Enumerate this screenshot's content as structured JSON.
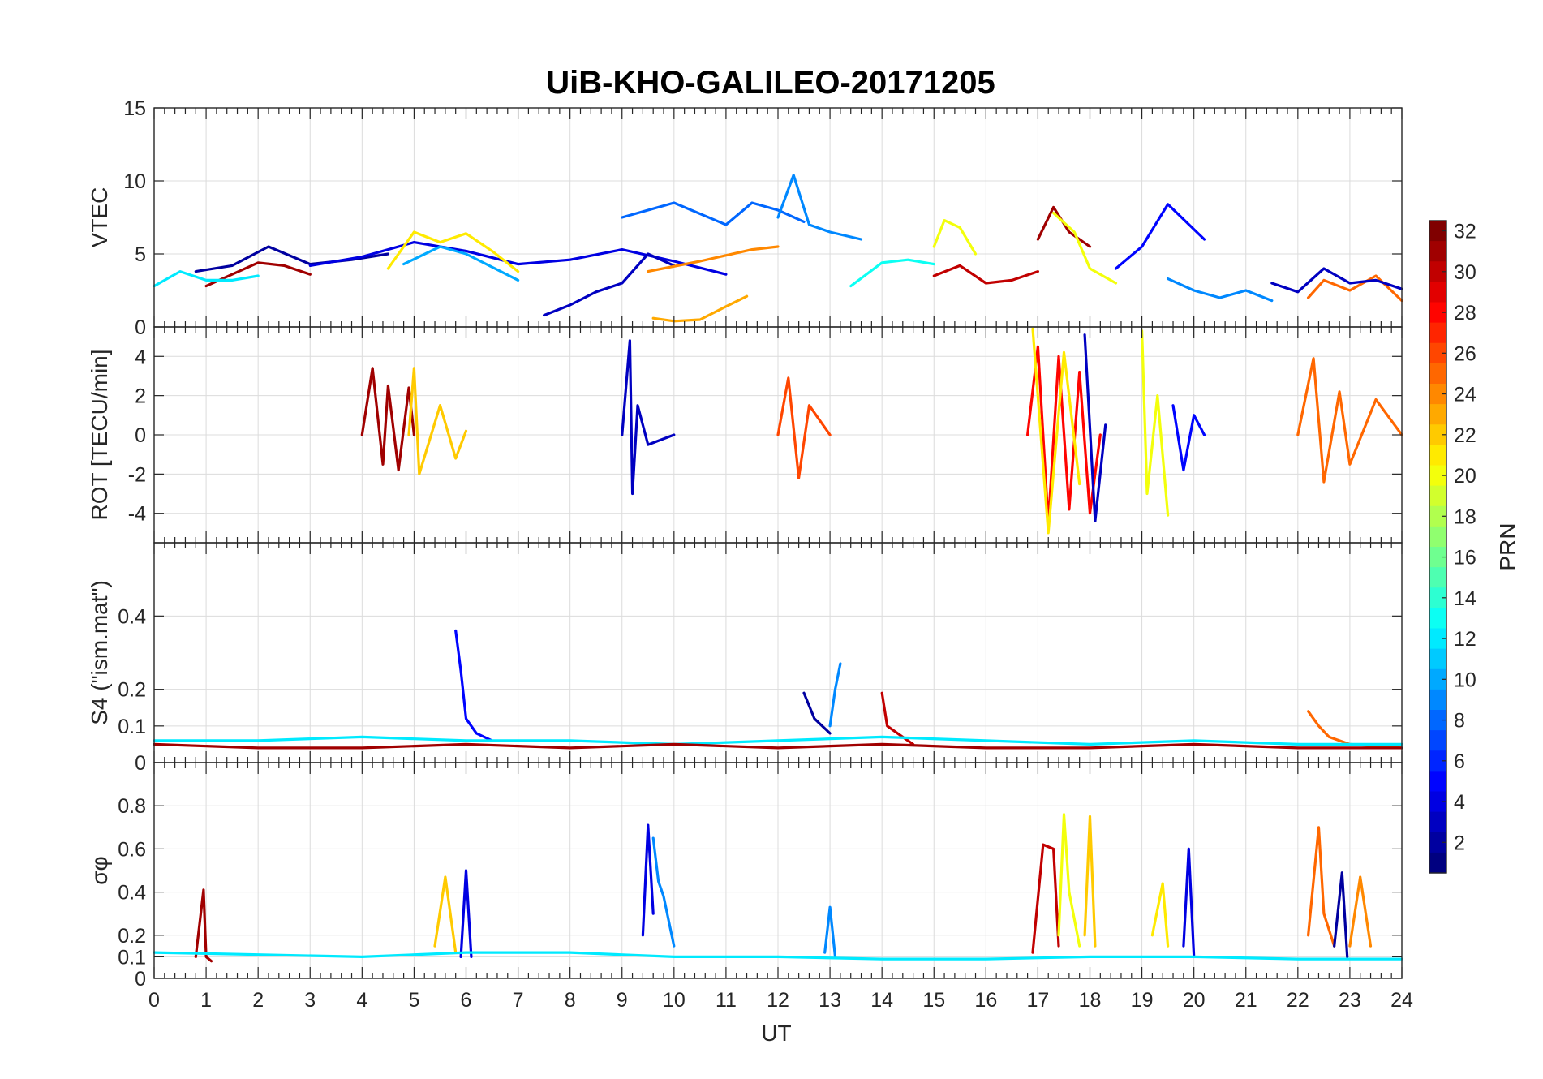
{
  "figure": {
    "title": "UiB-KHO-GALILEO-20171205",
    "xlabel": "UT"
  },
  "chart_data": [
    {
      "type": "line",
      "panel": "vtec",
      "ylabel": "VTEC",
      "xlim": [
        0,
        24
      ],
      "ylim": [
        0,
        15
      ],
      "yticks": [
        0,
        5,
        10,
        15
      ],
      "xticks": [
        0,
        1,
        2,
        3,
        4,
        5,
        6,
        7,
        8,
        9,
        10,
        11,
        12,
        13,
        14,
        15,
        16,
        17,
        18,
        19,
        20,
        21,
        22,
        23,
        24
      ],
      "grid": true,
      "series": [
        {
          "prn": 2,
          "x": [
            0.8,
            1.5,
            2.2,
            3.0,
            3.8,
            4.5
          ],
          "y": [
            3.8,
            4.2,
            5.5,
            4.3,
            4.6,
            5.0
          ]
        },
        {
          "prn": 4,
          "x": [
            3.0,
            4.0,
            5.0,
            6.0,
            7.0,
            8.0,
            9.0,
            10.0,
            11.0
          ],
          "y": [
            4.2,
            4.8,
            5.8,
            5.2,
            4.3,
            4.6,
            5.3,
            4.5,
            3.6
          ]
        },
        {
          "prn": 3,
          "x": [
            7.5,
            8.0,
            8.5,
            9.0,
            9.5,
            10.0
          ],
          "y": [
            0.8,
            1.5,
            2.4,
            3.0,
            5.0,
            4.2
          ]
        },
        {
          "prn": 8,
          "x": [
            9.0,
            10.0,
            11.0,
            11.5,
            12.0,
            12.5
          ],
          "y": [
            7.5,
            8.5,
            7.0,
            8.5,
            8.0,
            7.2
          ]
        },
        {
          "prn": 9,
          "x": [
            12.0,
            12.3,
            12.6,
            13.0,
            13.6
          ],
          "y": [
            7.5,
            10.4,
            7.0,
            6.5,
            6.0
          ]
        },
        {
          "prn": 24,
          "x": [
            9.5,
            10.5,
            11.5,
            12.0
          ],
          "y": [
            3.8,
            4.5,
            5.3,
            5.5
          ]
        },
        {
          "prn": 23,
          "x": [
            9.6,
            10.0,
            10.5,
            11.0,
            11.4
          ],
          "y": [
            0.6,
            0.4,
            0.5,
            1.4,
            2.1
          ]
        },
        {
          "prn": 21,
          "x": [
            4.5,
            5.0,
            5.5,
            6.0,
            6.5,
            7.0
          ],
          "y": [
            4.0,
            6.5,
            5.8,
            6.4,
            5.2,
            3.8
          ]
        },
        {
          "prn": 10,
          "x": [
            4.8,
            5.5,
            6.0,
            7.0
          ],
          "y": [
            4.3,
            5.5,
            5.0,
            3.2
          ]
        },
        {
          "prn": 31,
          "x": [
            1.0,
            1.5,
            2.0,
            2.5,
            3.0
          ],
          "y": [
            2.8,
            3.6,
            4.4,
            4.2,
            3.6
          ]
        },
        {
          "prn": 12,
          "x": [
            0.0,
            0.5,
            1.0,
            1.5,
            2.0
          ],
          "y": [
            2.8,
            3.8,
            3.2,
            3.2,
            3.5
          ]
        },
        {
          "prn": 20,
          "x": [
            15.0,
            15.2,
            15.5,
            15.8
          ],
          "y": [
            5.5,
            7.3,
            6.8,
            5.0
          ]
        },
        {
          "prn": 13,
          "x": [
            13.4,
            14.0,
            14.5,
            15.0
          ],
          "y": [
            2.8,
            4.4,
            4.6,
            4.3
          ]
        },
        {
          "prn": 30,
          "x": [
            15.0,
            15.5,
            16.0,
            16.5,
            17.0
          ],
          "y": [
            3.5,
            4.2,
            3.0,
            3.2,
            3.8
          ]
        },
        {
          "prn": 31,
          "x": [
            17.0,
            17.3,
            17.6,
            18.0
          ],
          "y": [
            6.0,
            8.2,
            6.5,
            5.5
          ]
        },
        {
          "prn": 20,
          "x": [
            17.3,
            17.7,
            18.0,
            18.5
          ],
          "y": [
            7.8,
            6.5,
            4.0,
            3.0
          ]
        },
        {
          "prn": 5,
          "x": [
            18.5,
            19.0,
            19.5,
            20.2
          ],
          "y": [
            4.0,
            5.5,
            8.4,
            6.0
          ]
        },
        {
          "prn": 9,
          "x": [
            19.5,
            20.0,
            20.5,
            21.0,
            21.5
          ],
          "y": [
            3.3,
            2.5,
            2.0,
            2.5,
            1.8
          ]
        },
        {
          "prn": 25,
          "x": [
            22.2,
            22.5,
            23.0,
            23.5,
            24.0
          ],
          "y": [
            2.0,
            3.2,
            2.5,
            3.5,
            1.8
          ]
        },
        {
          "prn": 3,
          "x": [
            21.5,
            22.0,
            22.5,
            23.0,
            23.5,
            24.0
          ],
          "y": [
            3.0,
            2.4,
            4.0,
            3.0,
            3.2,
            2.6
          ]
        }
      ]
    },
    {
      "type": "line",
      "panel": "rot",
      "ylabel": "ROT [TECU/min]",
      "xlim": [
        0,
        24
      ],
      "ylim": [
        -5.5,
        5.5
      ],
      "yticks": [
        -4,
        -2,
        0,
        2,
        4
      ],
      "grid": true,
      "series": [
        {
          "prn": 31,
          "x": [
            4.0,
            4.2,
            4.4,
            4.5,
            4.7,
            4.9,
            5.0
          ],
          "y": [
            0,
            3.4,
            -1.5,
            2.5,
            -1.8,
            2.4,
            0
          ]
        },
        {
          "prn": 22,
          "x": [
            4.9,
            5.0,
            5.1,
            5.5,
            5.8,
            6.0
          ],
          "y": [
            0,
            3.4,
            -2.0,
            1.5,
            -1.2,
            0.2
          ]
        },
        {
          "prn": 3,
          "x": [
            9.0,
            9.15,
            9.2,
            9.3,
            9.5,
            10.0
          ],
          "y": [
            0,
            4.8,
            -3.0,
            1.5,
            -0.5,
            0
          ]
        },
        {
          "prn": 26,
          "x": [
            12.0,
            12.2,
            12.4,
            12.6,
            13.0
          ],
          "y": [
            0,
            2.9,
            -2.2,
            1.5,
            0
          ]
        },
        {
          "prn": 28,
          "x": [
            16.8,
            17.0,
            17.2,
            17.4,
            17.6,
            17.8,
            18.0,
            18.2
          ],
          "y": [
            0,
            4.5,
            -4.5,
            4.0,
            -3.8,
            3.2,
            -4.0,
            0
          ]
        },
        {
          "prn": 21,
          "x": [
            16.9,
            17.2,
            17.5,
            17.8
          ],
          "y": [
            5.4,
            -5.0,
            4.2,
            -2.5
          ]
        },
        {
          "prn": 3,
          "x": [
            17.9,
            18.1,
            18.3
          ],
          "y": [
            5.1,
            -4.4,
            0.5
          ]
        },
        {
          "prn": 20,
          "x": [
            19.0,
            19.1,
            19.3,
            19.5
          ],
          "y": [
            5.3,
            -3.0,
            2.0,
            -4.1
          ]
        },
        {
          "prn": 5,
          "x": [
            19.6,
            19.8,
            20.0,
            20.2
          ],
          "y": [
            1.5,
            -1.8,
            1.0,
            0
          ]
        },
        {
          "prn": 25,
          "x": [
            22.0,
            22.3,
            22.5,
            22.8,
            23.0,
            23.5,
            24.0
          ],
          "y": [
            0,
            3.9,
            -2.4,
            2.2,
            -1.5,
            1.8,
            0
          ]
        }
      ]
    },
    {
      "type": "line",
      "panel": "s4",
      "ylabel": "S4 (\"ism.mat\")",
      "xlim": [
        0,
        24
      ],
      "ylim": [
        0,
        0.6
      ],
      "yticks": [
        0,
        0.1,
        0.2,
        0.4
      ],
      "grid": true,
      "series": [
        {
          "prn": 5,
          "x": [
            5.8,
            5.9,
            6.0,
            6.2,
            6.5
          ],
          "y": [
            0.36,
            0.25,
            0.12,
            0.08,
            0.06
          ]
        },
        {
          "prn": 2,
          "x": [
            12.5,
            12.7,
            13.0
          ],
          "y": [
            0.19,
            0.12,
            0.08
          ]
        },
        {
          "prn": 9,
          "x": [
            13.0,
            13.1,
            13.2
          ],
          "y": [
            0.1,
            0.2,
            0.27
          ]
        },
        {
          "prn": 30,
          "x": [
            14.0,
            14.1,
            14.3,
            14.6
          ],
          "y": [
            0.19,
            0.1,
            0.08,
            0.05
          ]
        },
        {
          "prn": 25,
          "x": [
            22.2,
            22.4,
            22.6,
            23.0,
            24.0
          ],
          "y": [
            0.14,
            0.1,
            0.07,
            0.05,
            0.04
          ]
        },
        {
          "prn": 12,
          "x": [
            0,
            2,
            4,
            6,
            8,
            10,
            12,
            14,
            16,
            18,
            20,
            22,
            24
          ],
          "y": [
            0.06,
            0.06,
            0.07,
            0.06,
            0.06,
            0.05,
            0.06,
            0.07,
            0.06,
            0.05,
            0.06,
            0.05,
            0.05
          ]
        },
        {
          "prn": 31,
          "x": [
            0,
            2,
            4,
            6,
            8,
            10,
            12,
            14,
            16,
            18,
            20,
            22,
            24
          ],
          "y": [
            0.05,
            0.04,
            0.04,
            0.05,
            0.04,
            0.05,
            0.04,
            0.05,
            0.04,
            0.04,
            0.05,
            0.04,
            0.04
          ]
        }
      ]
    },
    {
      "type": "line",
      "panel": "sigma_phi",
      "ylabel": "σφ",
      "xlim": [
        0,
        24
      ],
      "ylim": [
        0,
        1
      ],
      "yticks": [
        0,
        0.1,
        0.2,
        0.4,
        0.6,
        0.8
      ],
      "grid": true,
      "series": [
        {
          "prn": 31,
          "x": [
            0.8,
            0.95,
            1.0,
            1.1
          ],
          "y": [
            0.1,
            0.41,
            0.1,
            0.08
          ]
        },
        {
          "prn": 22,
          "x": [
            5.4,
            5.6,
            5.8
          ],
          "y": [
            0.15,
            0.47,
            0.12
          ]
        },
        {
          "prn": 4,
          "x": [
            5.9,
            6.0,
            6.1
          ],
          "y": [
            0.1,
            0.5,
            0.1
          ]
        },
        {
          "prn": 4,
          "x": [
            9.4,
            9.5,
            9.6
          ],
          "y": [
            0.2,
            0.71,
            0.3
          ]
        },
        {
          "prn": 9,
          "x": [
            9.6,
            9.7,
            9.8,
            10.0
          ],
          "y": [
            0.65,
            0.45,
            0.38,
            0.15
          ]
        },
        {
          "prn": 9,
          "x": [
            12.9,
            13.0,
            13.1
          ],
          "y": [
            0.12,
            0.33,
            0.1
          ]
        },
        {
          "prn": 30,
          "x": [
            16.9,
            17.1,
            17.3,
            17.4
          ],
          "y": [
            0.12,
            0.62,
            0.6,
            0.15
          ]
        },
        {
          "prn": 20,
          "x": [
            17.4,
            17.5,
            17.6,
            17.8
          ],
          "y": [
            0.2,
            0.76,
            0.4,
            0.15
          ]
        },
        {
          "prn": 22,
          "x": [
            17.9,
            18.0,
            18.1
          ],
          "y": [
            0.2,
            0.75,
            0.15
          ]
        },
        {
          "prn": 21,
          "x": [
            19.2,
            19.4,
            19.5
          ],
          "y": [
            0.2,
            0.44,
            0.15
          ]
        },
        {
          "prn": 4,
          "x": [
            19.8,
            19.9,
            20.0
          ],
          "y": [
            0.15,
            0.6,
            0.1
          ]
        },
        {
          "prn": 25,
          "x": [
            22.2,
            22.4,
            22.5,
            22.7
          ],
          "y": [
            0.2,
            0.7,
            0.3,
            0.15
          ]
        },
        {
          "prn": 2,
          "x": [
            22.7,
            22.85,
            22.95
          ],
          "y": [
            0.15,
            0.49,
            0.1
          ]
        },
        {
          "prn": 24,
          "x": [
            23.0,
            23.2,
            23.4
          ],
          "y": [
            0.15,
            0.47,
            0.15
          ]
        },
        {
          "prn": 12,
          "x": [
            0,
            2,
            4,
            6,
            8,
            10,
            12,
            14,
            16,
            18,
            20,
            22,
            24
          ],
          "y": [
            0.12,
            0.11,
            0.1,
            0.12,
            0.12,
            0.1,
            0.1,
            0.09,
            0.09,
            0.1,
            0.1,
            0.09,
            0.09
          ]
        }
      ]
    },
    {
      "type": "heatmap",
      "panel": "colorbar",
      "label": "PRN",
      "range": [
        1,
        32
      ],
      "ticks": [
        2,
        4,
        6,
        8,
        10,
        12,
        14,
        16,
        18,
        20,
        22,
        24,
        26,
        28,
        30,
        32
      ],
      "colormap": "jet"
    }
  ]
}
